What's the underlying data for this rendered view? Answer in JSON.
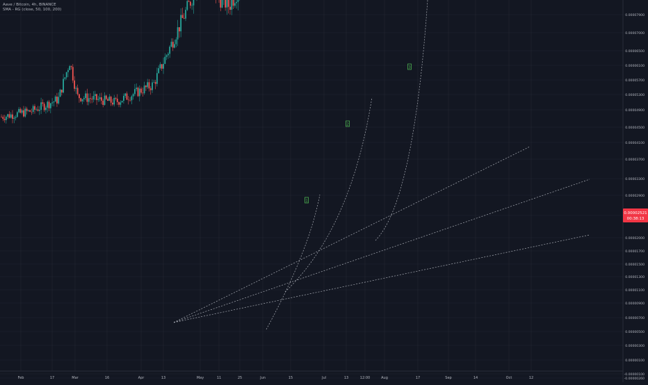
{
  "legend": {
    "symbol": "Aave / Bitcoin, 4h, BINANCE",
    "indicator": "SMA - RG (close, 50, 100, 200)"
  },
  "price_badge": {
    "value": "0.00002521",
    "countdown": "00:38:13",
    "color": "#f23645"
  },
  "colors": {
    "background": "#131722",
    "grid": "#232632",
    "candle_up": "#26a69a",
    "candle_down": "#ef5350",
    "drawing": "#d1d4dc",
    "label_box": "#4caf50"
  },
  "annotations": [
    "1",
    "2",
    "3"
  ],
  "chart_data": {
    "type": "candlestick",
    "title": "Aave / Bitcoin, 4h, BINANCE",
    "xlabel": "",
    "ylabel": "",
    "x_tick_labels": [
      "Feb",
      "17",
      "Mar",
      "16",
      "Apr",
      "13",
      "May",
      "11",
      "25",
      "Jun",
      "15",
      "Jul",
      "13",
      "12:00",
      "Aug",
      "17",
      "Sep",
      "14",
      "Oct",
      "12"
    ],
    "y_tick_labels": [
      "0.00007900",
      "0.00007000",
      "0.00006500",
      "0.00006100",
      "0.00005700",
      "0.00005300",
      "0.00004900",
      "0.00004500",
      "0.00004100",
      "0.00003700",
      "0.00003300",
      "0.00002900",
      "0.00002400",
      "0.00002000",
      "0.00001700",
      "0.00001500",
      "0.00001300",
      "0.00001100",
      "0.00000900",
      "0.00000700",
      "0.00000500",
      "0.00000300",
      "0.00000100",
      "-0.00000100",
      "-0.00000260",
      "-0.00000440"
    ],
    "price_path": [
      [
        0,
        4.4e-06
      ],
      [
        0.08,
        4.6e-06
      ],
      [
        0.15,
        5e-06
      ],
      [
        0.18,
        6.3e-06
      ],
      [
        0.2,
        5.1e-06
      ],
      [
        0.3,
        4.9e-06
      ],
      [
        0.4,
        5.5e-06
      ],
      [
        0.52,
        9e-06
      ],
      [
        0.6,
        8.2e-06
      ],
      [
        0.68,
        1e-05
      ],
      [
        0.72,
        1.75e-05
      ],
      [
        0.75,
        1.45e-05
      ],
      [
        0.8,
        2.1e-05
      ],
      [
        0.85,
        3e-05
      ],
      [
        0.88,
        3.9e-05
      ],
      [
        0.9,
        3.1e-05
      ],
      [
        0.93,
        2.4e-05
      ],
      [
        0.95,
        2.58e-05
      ]
    ],
    "ylim": [
      -4.4e-06,
      7.9e-06
    ],
    "last_price": 2.521e-05,
    "grid": true,
    "legend_position": "top-left"
  }
}
